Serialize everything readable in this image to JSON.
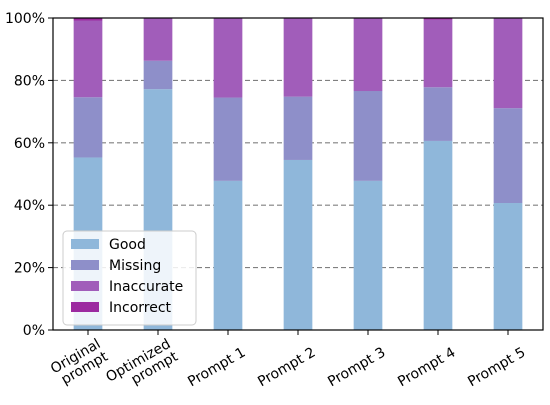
{
  "chart_data": {
    "type": "bar",
    "stacked": true,
    "normalized": true,
    "categories": [
      [
        "Original",
        "prompt"
      ],
      [
        "Optimized",
        "prompt"
      ],
      [
        "Prompt 1"
      ],
      [
        "Prompt 2"
      ],
      [
        "Prompt 3"
      ],
      [
        "Prompt 4"
      ],
      [
        "Prompt 5"
      ]
    ],
    "series": [
      {
        "name": "Good",
        "color": "#8fb7da",
        "values": [
          0.553,
          0.772,
          0.478,
          0.545,
          0.478,
          0.606,
          0.407
        ]
      },
      {
        "name": "Missing",
        "color": "#8e8fc9",
        "values": [
          0.193,
          0.091,
          0.267,
          0.203,
          0.288,
          0.172,
          0.304
        ]
      },
      {
        "name": "Inaccurate",
        "color": "#a15dba",
        "values": [
          0.246,
          0.137,
          0.255,
          0.252,
          0.234,
          0.217,
          0.289
        ]
      },
      {
        "name": "Incorrect",
        "color": "#9c2aa0",
        "values": [
          0.008,
          0.0,
          0.0,
          0.0,
          0.0,
          0.005,
          0.0
        ]
      }
    ],
    "ylim": [
      0,
      1
    ],
    "yticks": [
      0,
      0.2,
      0.4,
      0.6,
      0.8,
      1.0
    ],
    "ytick_labels": [
      "0%",
      "20%",
      "40%",
      "60%",
      "80%",
      "100%"
    ],
    "grid": "horizontal dashed",
    "legend_position": "lower-left",
    "xlabel": "",
    "ylabel": "",
    "title": ""
  }
}
